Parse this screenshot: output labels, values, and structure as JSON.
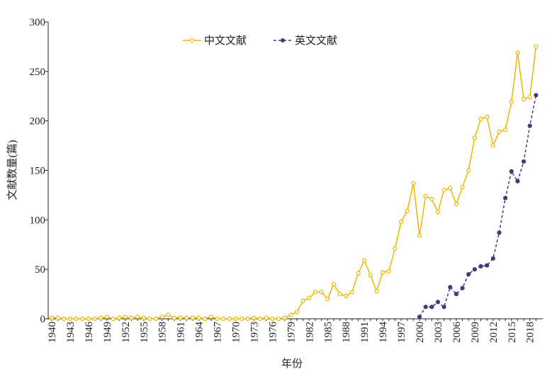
{
  "chart_data": {
    "type": "line",
    "x_label": "年份",
    "y_label": "文献数量(篇)",
    "categories": [
      "1940",
      null,
      null,
      "1943",
      null,
      null,
      "1946",
      null,
      null,
      "1949",
      null,
      null,
      "1952",
      null,
      null,
      "1955",
      null,
      null,
      "1958",
      null,
      null,
      "1961",
      null,
      null,
      "1964",
      null,
      null,
      "1967",
      null,
      null,
      "1970",
      null,
      null,
      "1973",
      null,
      null,
      "1976",
      null,
      null,
      "1979",
      null,
      null,
      "1982",
      null,
      null,
      "1985",
      null,
      null,
      "1988",
      null,
      null,
      "1991",
      null,
      null,
      "1994",
      null,
      null,
      "1997",
      null,
      null,
      "2000",
      null,
      null,
      "2003",
      null,
      null,
      "2006",
      null,
      null,
      "2009",
      null,
      null,
      "2012",
      null,
      null,
      "2015",
      null,
      null,
      "2018",
      null
    ],
    "series": [
      {
        "name": "中文文献",
        "color": "#f0b400",
        "style": "solid",
        "values": [
          1,
          1,
          0,
          0,
          0,
          0,
          0,
          0,
          1,
          2,
          0,
          1,
          2,
          1,
          2,
          1,
          0,
          0,
          2,
          4,
          1,
          1,
          1,
          1,
          1,
          0,
          2,
          0,
          0,
          0,
          0,
          0,
          0,
          1,
          0,
          1,
          0,
          0,
          1,
          4,
          7,
          18,
          21,
          27,
          27,
          20,
          35,
          25,
          23,
          27,
          46,
          59,
          44,
          28,
          47,
          48,
          71,
          98,
          109,
          137,
          84,
          124,
          121,
          108,
          130,
          132,
          116,
          133,
          150,
          183,
          202,
          204,
          175,
          189,
          191,
          219,
          269,
          222,
          224,
          275
        ]
      },
      {
        "name": "英文文献",
        "color": "#3a3f7a",
        "style": "dashed",
        "values": [
          null,
          null,
          null,
          null,
          null,
          null,
          null,
          null,
          null,
          null,
          null,
          null,
          null,
          null,
          null,
          null,
          null,
          null,
          null,
          null,
          null,
          null,
          null,
          null,
          null,
          null,
          null,
          null,
          null,
          null,
          null,
          null,
          null,
          null,
          null,
          null,
          null,
          null,
          null,
          null,
          null,
          null,
          null,
          null,
          null,
          null,
          null,
          null,
          null,
          null,
          null,
          null,
          null,
          null,
          null,
          null,
          null,
          null,
          null,
          null,
          2,
          12,
          12,
          17,
          12,
          32,
          25,
          31,
          45,
          50,
          53,
          54,
          61,
          87,
          122,
          149,
          139,
          159,
          195,
          226
        ]
      }
    ],
    "ylim": [
      0,
      300
    ],
    "yticks": [
      0,
      50,
      100,
      150,
      200,
      250,
      300
    ]
  }
}
